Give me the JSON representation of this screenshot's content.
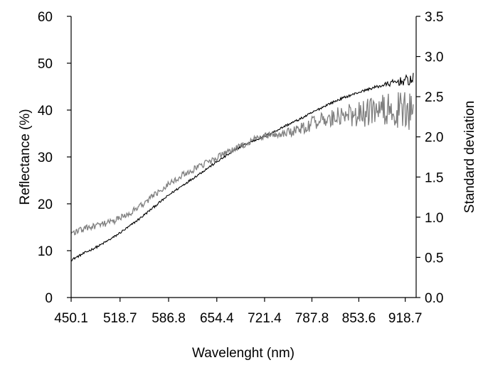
{
  "chart_data": {
    "type": "line",
    "title": "",
    "xlabel": "Wavelenght (nm)",
    "ylabel": "Reflectance (%)",
    "y2label": "Standard deviation",
    "xlim": [
      450.1,
      934.0
    ],
    "ylim": [
      0,
      60
    ],
    "y2lim": [
      0,
      3.5
    ],
    "x_ticks": [
      "450.1",
      "518.7",
      "586.8",
      "654.4",
      "721.4",
      "787.8",
      "853.6",
      "918.7"
    ],
    "y_ticks": [
      "0",
      "10",
      "20",
      "30",
      "40",
      "50",
      "60"
    ],
    "y2_ticks": [
      "0.0",
      "0.5",
      "1.0",
      "1.5",
      "2.0",
      "2.5",
      "3.0",
      "3.5"
    ],
    "grid": false,
    "legend": "none",
    "series": [
      {
        "axis": "left",
        "color": "#000000",
        "x": [
          450.1,
          470,
          490,
          510,
          530,
          550,
          570,
          590,
          610,
          630,
          650,
          670,
          690,
          710,
          730,
          750,
          770,
          790,
          810,
          830,
          850,
          870,
          890,
          910,
          930
        ],
        "y": [
          8.0,
          9.6,
          11.1,
          12.9,
          15.0,
          17.3,
          19.8,
          22.2,
          24.3,
          26.4,
          28.5,
          30.5,
          32.4,
          33.7,
          35.0,
          36.6,
          38.0,
          39.6,
          41.2,
          42.5,
          43.6,
          44.6,
          45.4,
          46.1,
          46.5
        ]
      },
      {
        "axis": "right",
        "color": "#808080",
        "x": [
          450.1,
          470,
          490,
          510,
          530,
          550,
          570,
          590,
          610,
          630,
          650,
          670,
          690,
          710,
          730,
          750,
          770,
          790,
          810,
          830,
          850,
          870,
          890,
          910,
          930
        ],
        "y": [
          0.8,
          0.86,
          0.9,
          0.95,
          1.04,
          1.16,
          1.3,
          1.44,
          1.54,
          1.63,
          1.72,
          1.81,
          1.89,
          1.98,
          2.03,
          2.05,
          2.1,
          2.17,
          2.22,
          2.26,
          2.28,
          2.31,
          2.32,
          2.34,
          2.3
        ]
      }
    ]
  }
}
